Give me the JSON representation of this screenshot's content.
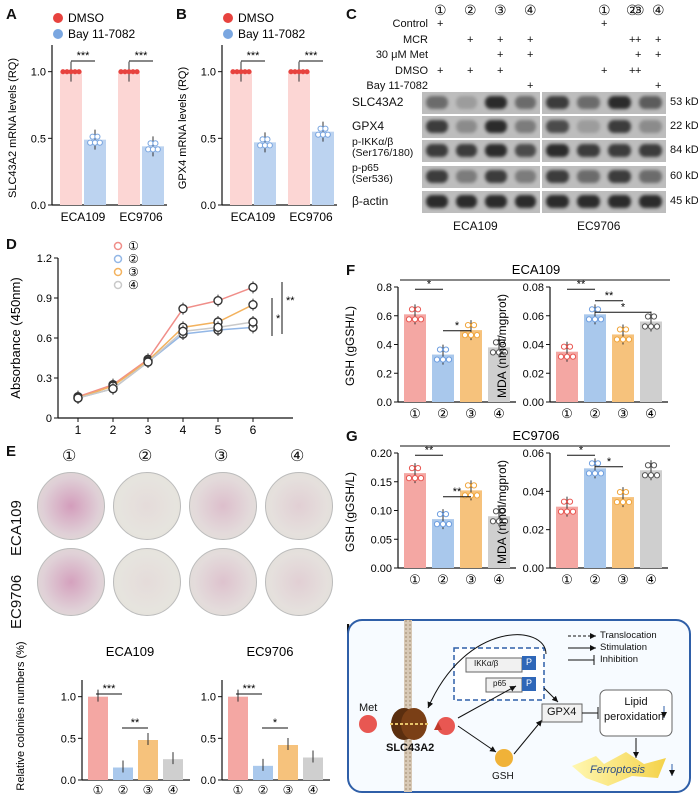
{
  "panels": {
    "A": "A",
    "B": "B",
    "C": "C",
    "D": "D",
    "E": "E",
    "F": "F",
    "G": "G",
    "H": "H"
  },
  "colors": {
    "c1": "#f4a7a3",
    "c2": "#a9c8ec",
    "c3": "#f6c27c",
    "c4": "#cfcfcf",
    "dmso": "#e7423e",
    "bay": "#7aa6e0",
    "line1": "#f08e89",
    "line2": "#93b7e6",
    "line3": "#f3b25e",
    "line4": "#c9c9c9"
  },
  "panelA": {
    "legend": [
      "DMSO",
      "Bay 11-7082"
    ],
    "ylabel": "SLC43A2 mRNA levels (RQ)",
    "groups": [
      "ECA109",
      "EC9706"
    ],
    "sig": [
      "***",
      "***"
    ],
    "yticks": [
      "0.0",
      "0.5",
      "1.0"
    ]
  },
  "panelB": {
    "legend": [
      "DMSO",
      "Bay 11-7082"
    ],
    "ylabel": "GPX4 mRNA levels (RQ)",
    "groups": [
      "ECA109",
      "EC9706"
    ],
    "sig": [
      "***",
      "***"
    ],
    "yticks": [
      "0.0",
      "0.5",
      "1.0"
    ]
  },
  "panelC": {
    "lane_nums": [
      "①",
      "②",
      "③",
      "④",
      "①",
      "②",
      "③",
      "④"
    ],
    "treatments": [
      "Control",
      "MCR",
      "30 μM Met",
      "DMSO",
      "Bay 11-7082"
    ],
    "marks": {
      "Control": [
        "+",
        "",
        "",
        "",
        "+",
        "",
        "",
        ""
      ],
      "MCR": [
        "",
        "+",
        "+",
        "+",
        "",
        "+",
        "+",
        "+"
      ],
      "30 μM Met": [
        "",
        "",
        "+",
        "+",
        "",
        "",
        "+",
        "+"
      ],
      "DMSO": [
        "+",
        "+",
        "+",
        "",
        "+",
        "+",
        "+",
        ""
      ],
      "Bay 11-7082": [
        "",
        "",
        "",
        "+",
        "",
        "",
        "",
        "+"
      ]
    },
    "proteins": [
      "SLC43A2",
      "GPX4",
      "p-IKKα/β\n(Ser176/180)",
      "p-p65\n(Ser536)",
      "β-actin"
    ],
    "protein_lines": [
      [
        "SLC43A2"
      ],
      [
        "GPX4"
      ],
      [
        "p-IKKα/β",
        "(Ser176/180)"
      ],
      [
        "p-p65",
        "(Ser536)"
      ],
      [
        "β-actin"
      ]
    ],
    "sizes": [
      "53 kD",
      "22 kD",
      "84 kD",
      "60 kD",
      "45 kD"
    ],
    "cells": [
      "ECA109",
      "EC9706"
    ]
  },
  "panelD": {
    "legend": [
      "①",
      "②",
      "③",
      "④"
    ],
    "ylabel": "Absorbance (450nm)",
    "xlabel": "Days",
    "sig": [
      "*",
      "**"
    ],
    "yticks": [
      "0",
      "0.3",
      "0.6",
      "0.9",
      "1.2"
    ],
    "xticks": [
      "1",
      "2",
      "3",
      "4",
      "5",
      "6"
    ]
  },
  "panelE": {
    "lane_nums": [
      "①",
      "②",
      "③",
      "④"
    ],
    "rows": [
      "ECA109",
      "EC9706"
    ],
    "bar_titles": [
      "ECA109",
      "EC9706"
    ],
    "ylabel": "Relative colonies numbers (%)",
    "yticks": [
      "0.0",
      "0.5",
      "1.0"
    ],
    "sig": [
      "***",
      "**",
      "***",
      "*"
    ]
  },
  "panelF": {
    "title": "ECA109",
    "left_ylabel": "GSH (gGSH/L)",
    "right_ylabel": "MDA (nmol/mgprot)",
    "left_yticks": [
      "0.0",
      "0.2",
      "0.4",
      "0.6",
      "0.8"
    ],
    "right_yticks": [
      "0.00",
      "0.02",
      "0.04",
      "0.06",
      "0.08"
    ],
    "xticks": [
      "①",
      "②",
      "③",
      "④"
    ],
    "sig_left": [
      "*",
      "*"
    ],
    "sig_right": [
      "**",
      "**",
      "*"
    ]
  },
  "panelG": {
    "title": "EC9706",
    "left_ylabel": "GSH (gGSH/L)",
    "right_ylabel": "MDA (nmol/mgprot)",
    "left_yticks": [
      "0.00",
      "0.05",
      "0.10",
      "0.15",
      "0.20"
    ],
    "right_yticks": [
      "0.00",
      "0.02",
      "0.04",
      "0.06"
    ],
    "xticks": [
      "①",
      "②",
      "③",
      "④"
    ],
    "sig_left": [
      "**",
      "**"
    ],
    "sig_right": [
      "*",
      "*"
    ]
  },
  "panelH": {
    "legend": [
      "Translocation",
      "Stimulation",
      "Inhibition"
    ],
    "met": "Met",
    "transporter": "SLC43A2",
    "ikk": "IKKα/β",
    "p65": "p65",
    "p": "P",
    "gpx4": "GPX4",
    "lipid": "Lipid\nperoxidation",
    "lipid_lines": [
      "Lipid",
      "peroxidation"
    ],
    "gsh": "GSH",
    "ferroptosis": "Ferroptosis"
  },
  "chart_data": [
    {
      "type": "bar",
      "id": "A",
      "categories": [
        "ECA109",
        "EC9706"
      ],
      "series": [
        {
          "name": "DMSO",
          "values": [
            1.0,
            1.0
          ]
        },
        {
          "name": "Bay 11-7082",
          "values": [
            0.49,
            0.44
          ]
        }
      ],
      "ylabel": "SLC43A2 mRNA levels (RQ)",
      "ylim": [
        0,
        1.2
      ]
    },
    {
      "type": "bar",
      "id": "B",
      "categories": [
        "ECA109",
        "EC9706"
      ],
      "series": [
        {
          "name": "DMSO",
          "values": [
            1.0,
            1.0
          ]
        },
        {
          "name": "Bay 11-7082",
          "values": [
            0.47,
            0.55
          ]
        }
      ],
      "ylabel": "GPX4 mRNA levels (RQ)",
      "ylim": [
        0,
        1.2
      ]
    },
    {
      "type": "line",
      "id": "D",
      "x": [
        1,
        2,
        3,
        4,
        5,
        6
      ],
      "series": [
        {
          "name": "①",
          "values": [
            0.16,
            0.25,
            0.44,
            0.82,
            0.88,
            0.98
          ]
        },
        {
          "name": "②",
          "values": [
            0.15,
            0.22,
            0.42,
            0.63,
            0.66,
            0.68
          ]
        },
        {
          "name": "③",
          "values": [
            0.15,
            0.24,
            0.43,
            0.68,
            0.72,
            0.85
          ]
        },
        {
          "name": "④",
          "values": [
            0.15,
            0.22,
            0.42,
            0.65,
            0.68,
            0.72
          ]
        }
      ],
      "xlabel": "Days",
      "ylabel": "Absorbance (450nm)",
      "ylim": [
        0,
        1.2
      ]
    },
    {
      "type": "bar",
      "id": "E1",
      "title": "ECA109",
      "categories": [
        "①",
        "②",
        "③",
        "④"
      ],
      "values": [
        1.0,
        0.15,
        0.48,
        0.25
      ],
      "ylabel": "Relative colonies numbers (%)",
      "ylim": [
        0,
        1.2
      ]
    },
    {
      "type": "bar",
      "id": "E2",
      "title": "EC9706",
      "categories": [
        "①",
        "②",
        "③",
        "④"
      ],
      "values": [
        1.0,
        0.17,
        0.42,
        0.27
      ],
      "ylim": [
        0,
        1.2
      ]
    },
    {
      "type": "bar",
      "id": "F1",
      "title": "ECA109",
      "categories": [
        "①",
        "②",
        "③",
        "④"
      ],
      "values": [
        0.61,
        0.33,
        0.5,
        0.38
      ],
      "ylabel": "GSH (gGSH/L)",
      "ylim": [
        0,
        0.8
      ]
    },
    {
      "type": "bar",
      "id": "F2",
      "categories": [
        "①",
        "②",
        "③",
        "④"
      ],
      "values": [
        0.035,
        0.061,
        0.047,
        0.056
      ],
      "ylabel": "MDA (nmol/mgprot)",
      "ylim": [
        0,
        0.08
      ]
    },
    {
      "type": "bar",
      "id": "G1",
      "title": "EC9706",
      "categories": [
        "①",
        "②",
        "③",
        "④"
      ],
      "values": [
        0.165,
        0.085,
        0.135,
        0.09
      ],
      "ylabel": "GSH (gGSH/L)",
      "ylim": [
        0,
        0.2
      ]
    },
    {
      "type": "bar",
      "id": "G2",
      "categories": [
        "①",
        "②",
        "③",
        "④"
      ],
      "values": [
        0.032,
        0.052,
        0.037,
        0.051
      ],
      "ylabel": "MDA (nmol/mgprot)",
      "ylim": [
        0,
        0.06
      ]
    }
  ]
}
